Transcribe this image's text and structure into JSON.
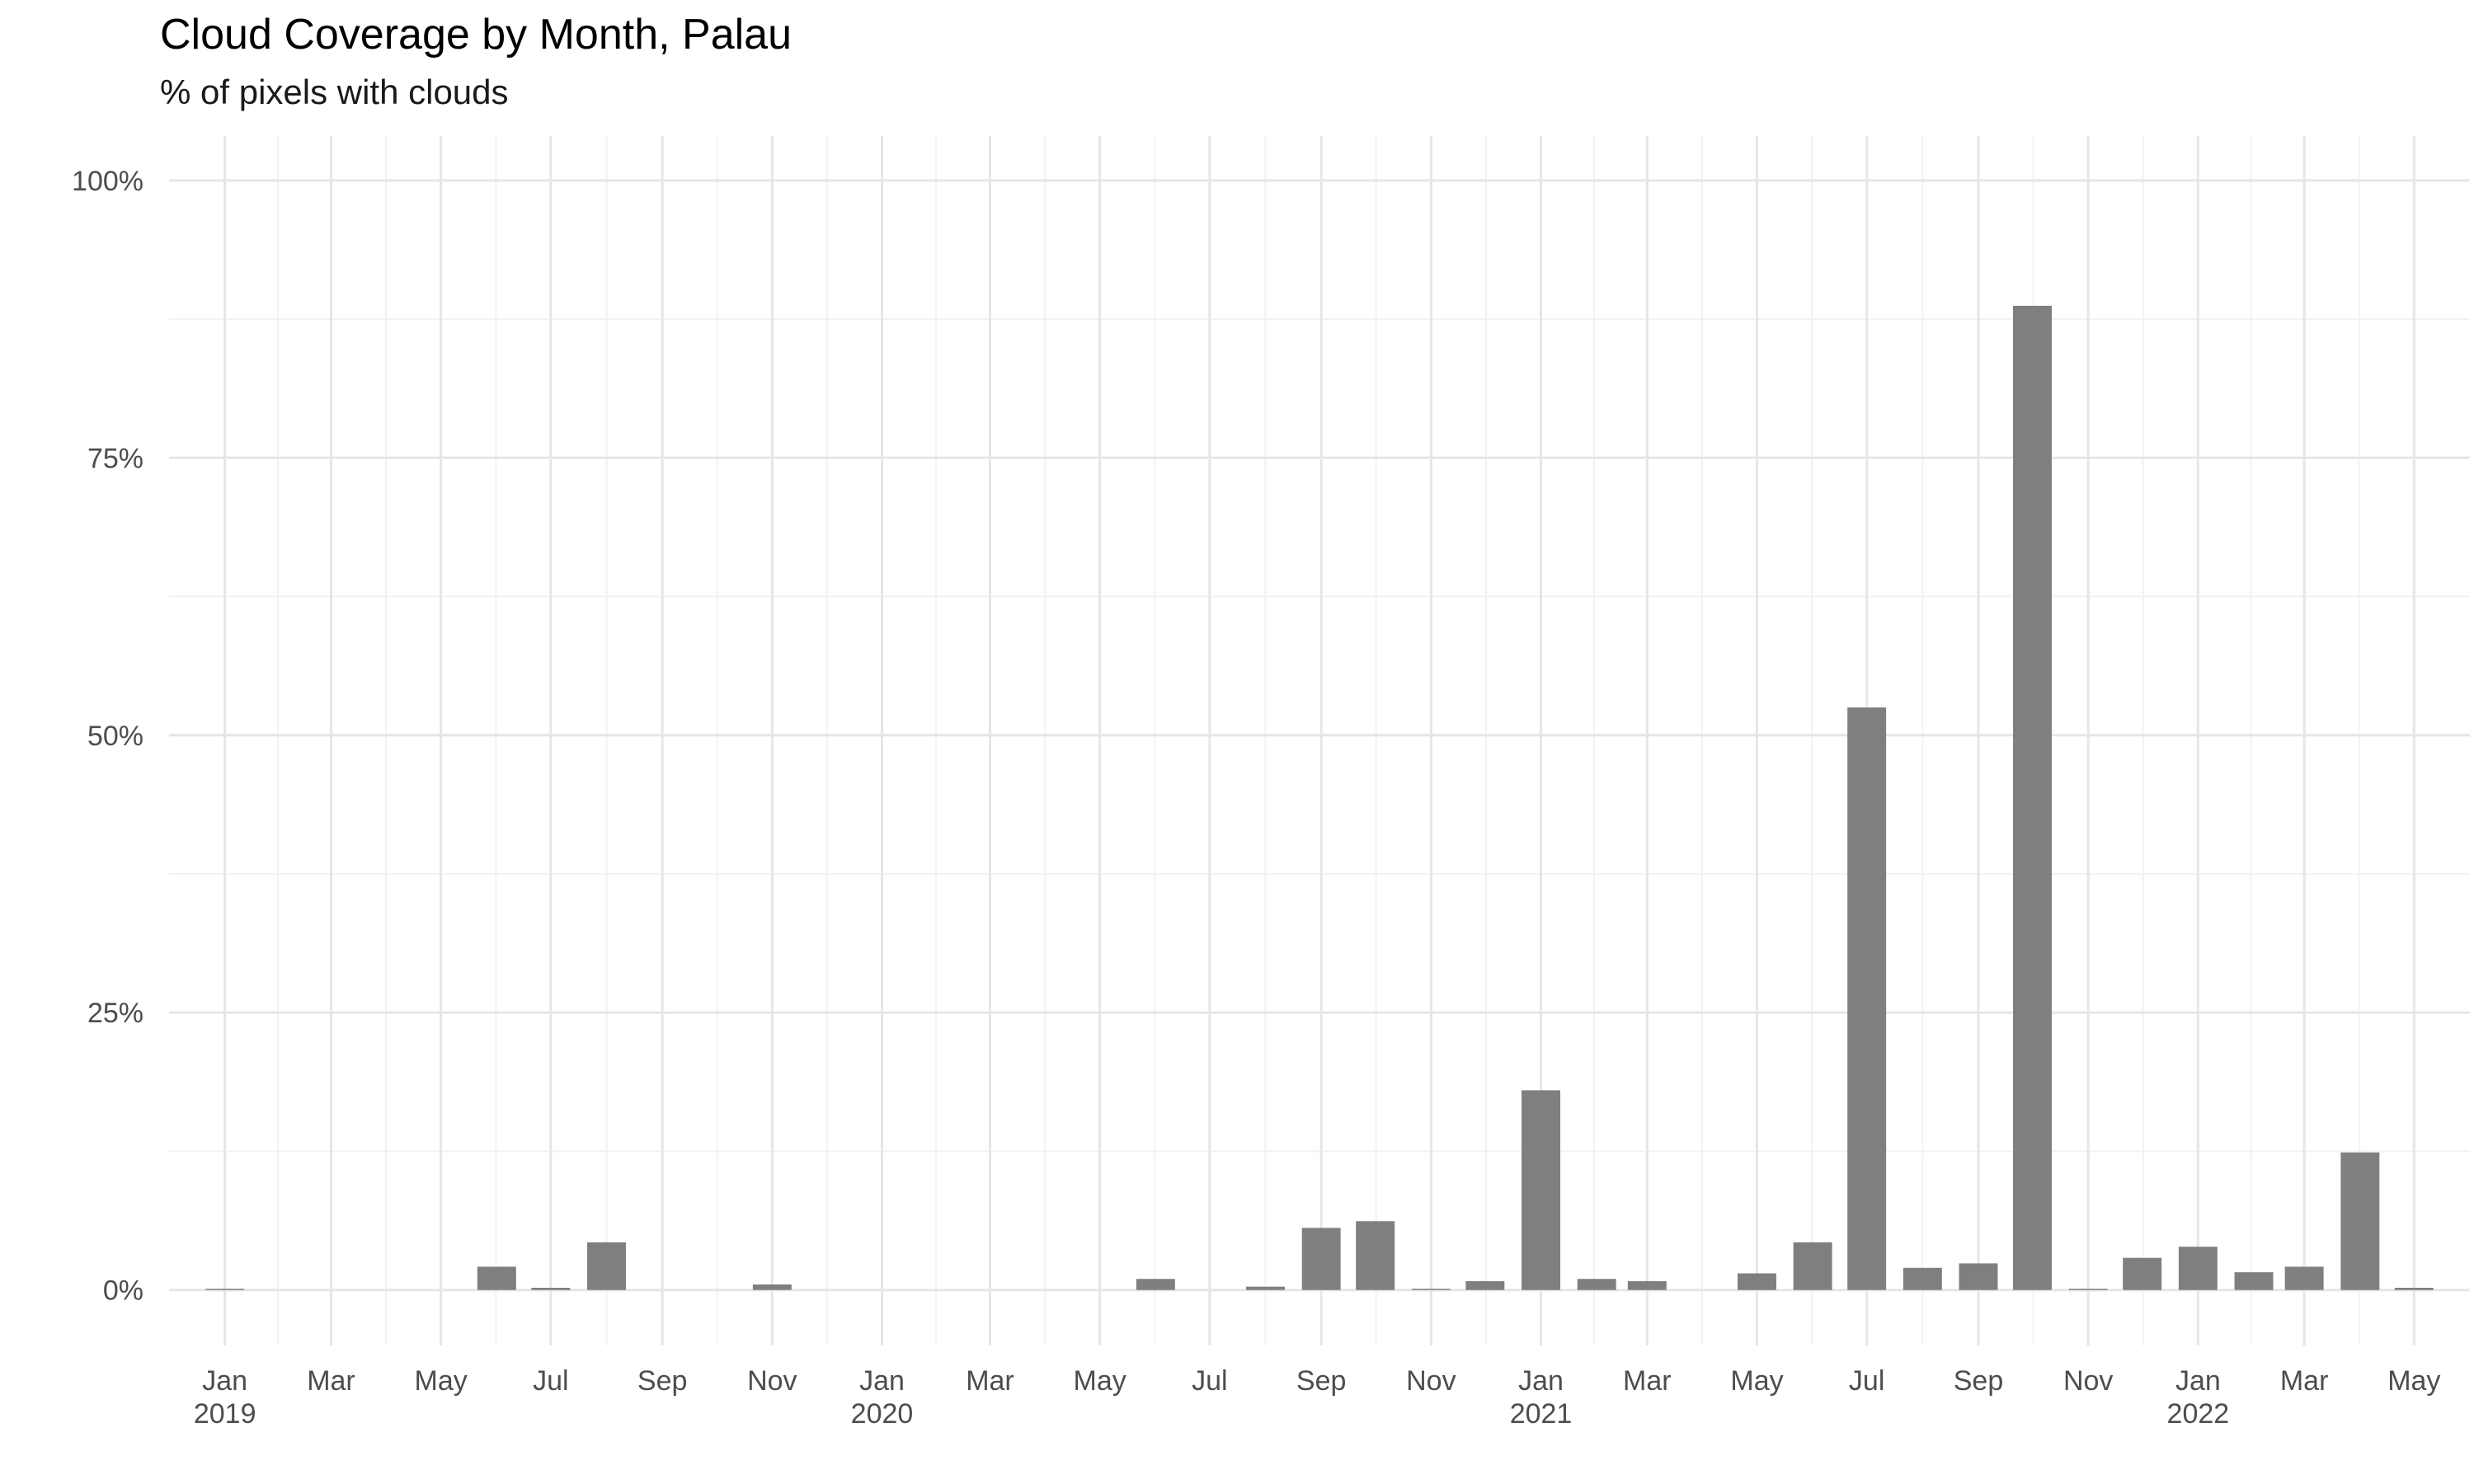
{
  "chart_data": {
    "type": "bar",
    "title": "Cloud Coverage by Month, Palau",
    "subtitle": "% of pixels with clouds",
    "xlabel": "",
    "ylabel": "",
    "ylim": [
      -5,
      104
    ],
    "y_ticks": [
      0,
      25,
      50,
      75,
      100
    ],
    "y_tick_labels": [
      "0%",
      "25%",
      "50%",
      "75%",
      "100%"
    ],
    "x_range": [
      "2018-12-01",
      "2022-06-01"
    ],
    "x_ticks": [
      {
        "date": "2019-01-01",
        "label": "Jan",
        "year": "2019"
      },
      {
        "date": "2019-03-01",
        "label": "Mar",
        "year": ""
      },
      {
        "date": "2019-05-01",
        "label": "May",
        "year": ""
      },
      {
        "date": "2019-07-01",
        "label": "Jul",
        "year": ""
      },
      {
        "date": "2019-09-01",
        "label": "Sep",
        "year": ""
      },
      {
        "date": "2019-11-01",
        "label": "Nov",
        "year": ""
      },
      {
        "date": "2020-01-01",
        "label": "Jan",
        "year": "2020"
      },
      {
        "date": "2020-03-01",
        "label": "Mar",
        "year": ""
      },
      {
        "date": "2020-05-01",
        "label": "May",
        "year": ""
      },
      {
        "date": "2020-07-01",
        "label": "Jul",
        "year": ""
      },
      {
        "date": "2020-09-01",
        "label": "Sep",
        "year": ""
      },
      {
        "date": "2020-11-01",
        "label": "Nov",
        "year": ""
      },
      {
        "date": "2021-01-01",
        "label": "Jan",
        "year": "2021"
      },
      {
        "date": "2021-03-01",
        "label": "Mar",
        "year": ""
      },
      {
        "date": "2021-05-01",
        "label": "May",
        "year": ""
      },
      {
        "date": "2021-07-01",
        "label": "Jul",
        "year": ""
      },
      {
        "date": "2021-09-01",
        "label": "Sep",
        "year": ""
      },
      {
        "date": "2021-11-01",
        "label": "Nov",
        "year": ""
      },
      {
        "date": "2022-01-01",
        "label": "Jan",
        "year": "2022"
      },
      {
        "date": "2022-03-01",
        "label": "Mar",
        "year": ""
      },
      {
        "date": "2022-05-01",
        "label": "May",
        "year": ""
      }
    ],
    "grid": true,
    "bar_color": "#7f7f7f",
    "points": [
      {
        "x": "2019-01-01",
        "y": 0.1
      },
      {
        "x": "2019-06-01",
        "y": 2.1
      },
      {
        "x": "2019-07-01",
        "y": 0.2
      },
      {
        "x": "2019-08-01",
        "y": 4.3
      },
      {
        "x": "2019-11-01",
        "y": 0.5
      },
      {
        "x": "2020-06-01",
        "y": 1.0
      },
      {
        "x": "2020-08-01",
        "y": 0.3
      },
      {
        "x": "2020-09-01",
        "y": 5.6
      },
      {
        "x": "2020-10-01",
        "y": 6.2
      },
      {
        "x": "2020-11-01",
        "y": 0.05
      },
      {
        "x": "2020-12-01",
        "y": 0.8
      },
      {
        "x": "2021-01-01",
        "y": 18.0
      },
      {
        "x": "2021-02-01",
        "y": 1.0
      },
      {
        "x": "2021-03-01",
        "y": 0.8
      },
      {
        "x": "2021-05-01",
        "y": 1.5
      },
      {
        "x": "2021-06-01",
        "y": 4.3
      },
      {
        "x": "2021-07-01",
        "y": 52.5
      },
      {
        "x": "2021-08-01",
        "y": 2.0
      },
      {
        "x": "2021-09-01",
        "y": 2.4
      },
      {
        "x": "2021-10-01",
        "y": 88.7
      },
      {
        "x": "2021-11-01",
        "y": 0.05
      },
      {
        "x": "2021-12-01",
        "y": 2.9
      },
      {
        "x": "2022-01-01",
        "y": 3.9
      },
      {
        "x": "2022-02-01",
        "y": 1.6
      },
      {
        "x": "2022-03-01",
        "y": 2.1
      },
      {
        "x": "2022-04-01",
        "y": 12.4
      },
      {
        "x": "2022-05-01",
        "y": 0.2
      }
    ]
  }
}
